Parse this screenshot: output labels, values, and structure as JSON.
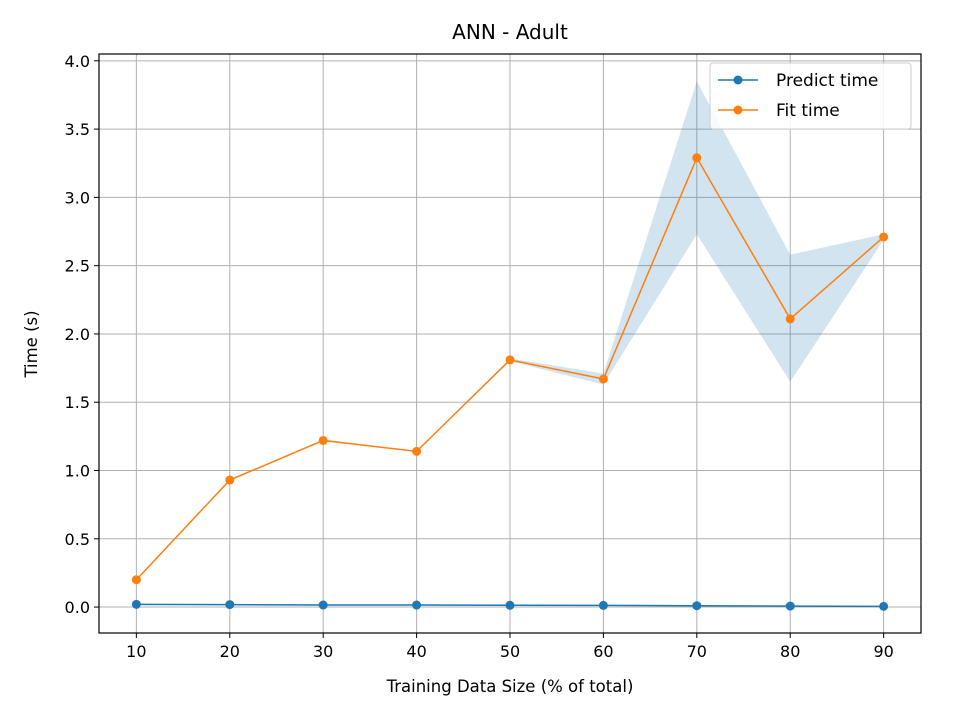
{
  "chart_data": {
    "type": "line",
    "title": "ANN - Adult",
    "xlabel": "Training Data Size (% of total)",
    "ylabel": "Time (s)",
    "x": [
      10,
      20,
      30,
      40,
      50,
      60,
      70,
      80,
      90
    ],
    "xlim": [
      6,
      94
    ],
    "ylim": [
      -0.19,
      4.05
    ],
    "xticks": [
      "10",
      "20",
      "30",
      "40",
      "50",
      "60",
      "70",
      "80",
      "90"
    ],
    "yticks": [
      "0.0",
      "0.5",
      "1.0",
      "1.5",
      "2.0",
      "2.5",
      "3.0",
      "3.5",
      "4.0"
    ],
    "grid": true,
    "legend_position": "top-right",
    "series": [
      {
        "name": "Predict time",
        "color": "#1f77b4",
        "values": [
          0.02,
          0.018,
          0.015,
          0.015,
          0.013,
          0.012,
          0.01,
          0.007,
          0.005
        ],
        "band_lower": [
          0.02,
          0.018,
          0.015,
          0.015,
          0.013,
          0.012,
          0.01,
          0.007,
          0.005
        ],
        "band_upper": [
          0.02,
          0.018,
          0.015,
          0.015,
          0.013,
          0.012,
          0.01,
          0.007,
          0.005
        ]
      },
      {
        "name": "Fit time",
        "color": "#ff7f0e",
        "values": [
          0.2,
          0.93,
          1.22,
          1.14,
          1.81,
          1.67,
          3.29,
          2.11,
          2.71
        ],
        "band_lower": [
          0.2,
          0.93,
          1.22,
          1.14,
          1.8,
          1.63,
          2.73,
          1.65,
          2.69
        ],
        "band_upper": [
          0.2,
          0.93,
          1.22,
          1.14,
          1.82,
          1.71,
          3.85,
          2.58,
          2.73
        ]
      }
    ],
    "band_color": "#1f77b4",
    "band_opacity": 0.2
  }
}
